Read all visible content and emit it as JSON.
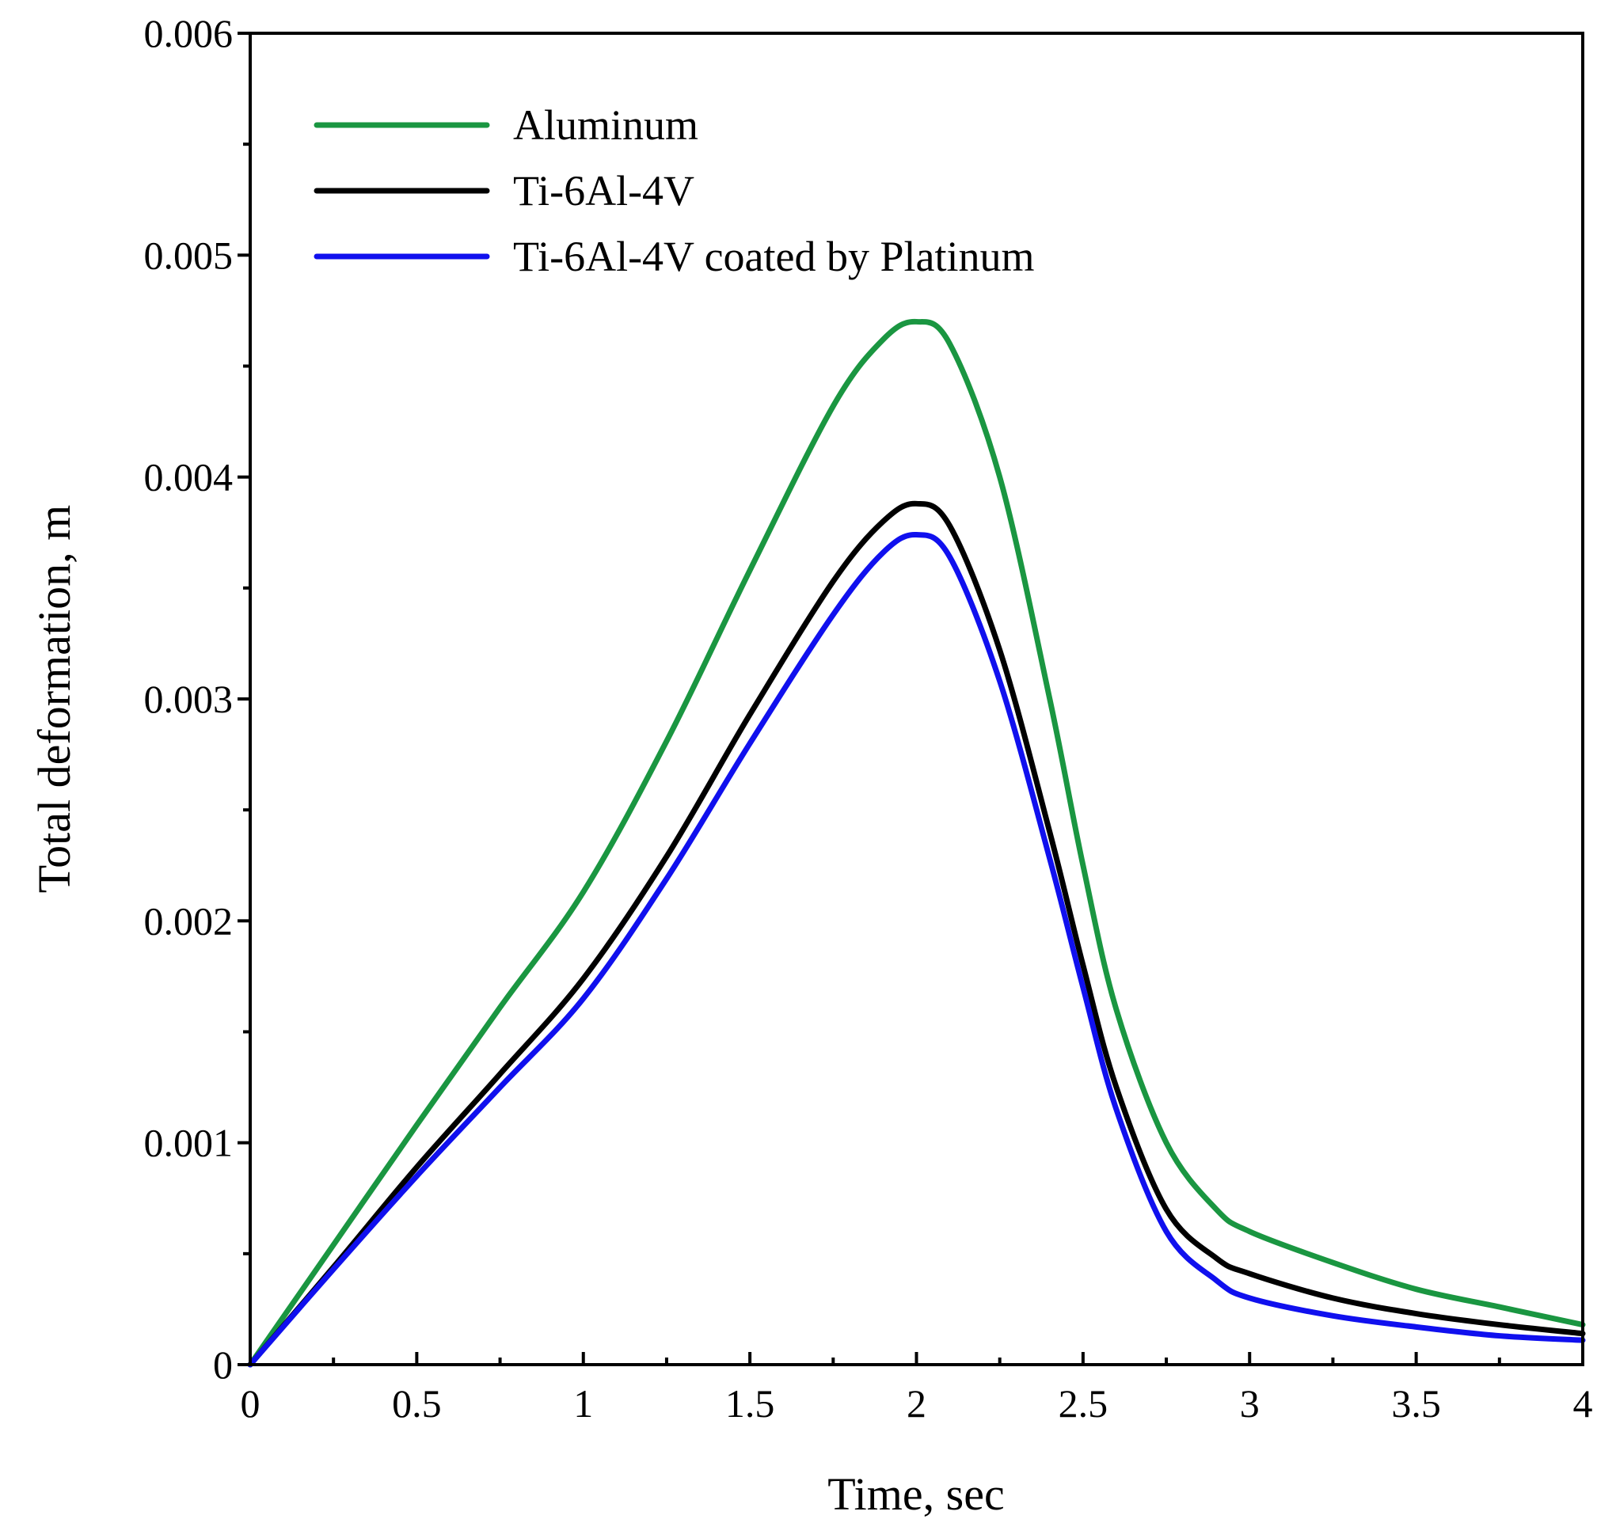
{
  "chart_data": {
    "type": "line",
    "title": "",
    "xlabel": "Time, sec",
    "ylabel": "Total deformation, m",
    "xlim": [
      0,
      4
    ],
    "ylim": [
      0,
      0.006
    ],
    "grid": false,
    "legend_position": "top-left",
    "x_ticks": [
      {
        "value": 0,
        "label": "0"
      },
      {
        "value": 0.5,
        "label": "0.5"
      },
      {
        "value": 1,
        "label": "1"
      },
      {
        "value": 1.5,
        "label": "1.5"
      },
      {
        "value": 2,
        "label": "2"
      },
      {
        "value": 2.5,
        "label": "2.5"
      },
      {
        "value": 3,
        "label": "3"
      },
      {
        "value": 3.5,
        "label": "3.5"
      },
      {
        "value": 4,
        "label": "4"
      }
    ],
    "y_ticks": [
      {
        "value": 0,
        "label": "0"
      },
      {
        "value": 0.001,
        "label": "0.001"
      },
      {
        "value": 0.002,
        "label": "0.002"
      },
      {
        "value": 0.003,
        "label": "0.003"
      },
      {
        "value": 0.004,
        "label": "0.004"
      },
      {
        "value": 0.005,
        "label": "0.005"
      },
      {
        "value": 0.006,
        "label": "0.006"
      }
    ],
    "x_minor_step": 0.25,
    "y_minor_step": 0.0005,
    "x": [
      0,
      0.25,
      0.5,
      0.75,
      1.0,
      1.25,
      1.5,
      1.75,
      1.9,
      2.0,
      2.1,
      2.25,
      2.4,
      2.5,
      2.6,
      2.75,
      2.9,
      3.0,
      3.25,
      3.5,
      3.75,
      4.0
    ],
    "series": [
      {
        "name": "Aluminum",
        "color": "#1a9641",
        "values": [
          0,
          0.00054,
          0.00108,
          0.00161,
          0.00213,
          0.00281,
          0.00358,
          0.00432,
          0.00462,
          0.0047,
          0.0046,
          0.004,
          0.003,
          0.00225,
          0.0016,
          0.001,
          0.0007,
          0.0006,
          0.00046,
          0.00034,
          0.00026,
          0.00018
        ]
      },
      {
        "name": "Ti-6Al-4V",
        "color": "#000000",
        "values": [
          0,
          0.00044,
          0.00089,
          0.00131,
          0.00174,
          0.00229,
          0.00293,
          0.00353,
          0.0038,
          0.00388,
          0.00378,
          0.00322,
          0.0024,
          0.0018,
          0.00125,
          0.0007,
          0.00048,
          0.00041,
          0.0003,
          0.00023,
          0.00018,
          0.00014
        ]
      },
      {
        "name": "Ti-6Al-4V coated by Platinum",
        "color": "#1010ee",
        "values": [
          0,
          0.00043,
          0.00085,
          0.00125,
          0.00165,
          0.00219,
          0.0028,
          0.00338,
          0.00366,
          0.00374,
          0.00364,
          0.00308,
          0.00228,
          0.0017,
          0.00115,
          0.0006,
          0.00038,
          0.0003,
          0.00022,
          0.00017,
          0.00013,
          0.00011
        ]
      }
    ]
  }
}
